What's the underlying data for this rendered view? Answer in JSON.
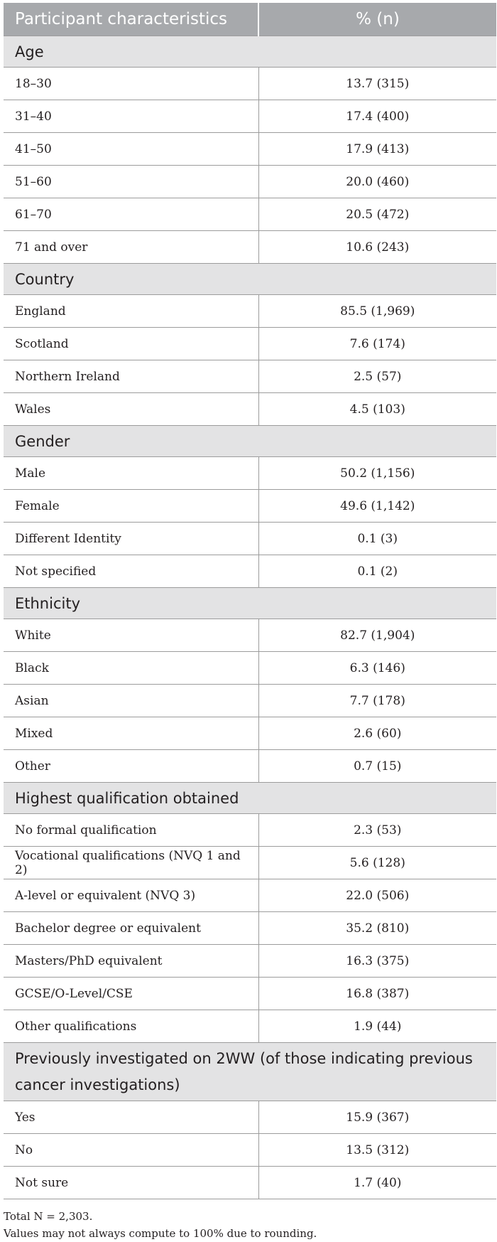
{
  "table": {
    "headers": [
      "Participant characteristics",
      "% (n)"
    ],
    "sections": [
      {
        "title": "Age",
        "rows": [
          [
            "18–30",
            "13.7 (315)"
          ],
          [
            "31–40",
            "17.4 (400)"
          ],
          [
            "41–50",
            "17.9 (413)"
          ],
          [
            "51–60",
            "20.0 (460)"
          ],
          [
            "61–70",
            "20.5 (472)"
          ],
          [
            "71 and over",
            "10.6 (243)"
          ]
        ]
      },
      {
        "title": "Country",
        "rows": [
          [
            "England",
            "85.5 (1,969)"
          ],
          [
            "Scotland",
            "7.6 (174)"
          ],
          [
            "Northern Ireland",
            "2.5 (57)"
          ],
          [
            "Wales",
            "4.5 (103)"
          ]
        ]
      },
      {
        "title": "Gender",
        "rows": [
          [
            "Male",
            "50.2 (1,156)"
          ],
          [
            "Female",
            "49.6 (1,142)"
          ],
          [
            "Different Identity",
            "0.1 (3)"
          ],
          [
            "Not specified",
            "0.1 (2)"
          ]
        ]
      },
      {
        "title": "Ethnicity",
        "rows": [
          [
            "White",
            "82.7 (1,904)"
          ],
          [
            "Black",
            "6.3 (146)"
          ],
          [
            "Asian",
            "7.7 (178)"
          ],
          [
            "Mixed",
            "2.6 (60)"
          ],
          [
            "Other",
            "0.7 (15)"
          ]
        ]
      },
      {
        "title": "Highest qualification obtained",
        "rows": [
          [
            "No formal qualification",
            "2.3 (53)"
          ],
          [
            "Vocational qualifications (NVQ 1 and 2)",
            "5.6 (128)"
          ],
          [
            "A-level or equivalent (NVQ 3)",
            "22.0 (506)"
          ],
          [
            "Bachelor degree or equivalent",
            "35.2 (810)"
          ],
          [
            "Masters/PhD equivalent",
            "16.3 (375)"
          ],
          [
            "GCSE/O-Level/CSE",
            "16.8 (387)"
          ],
          [
            "Other qualifications",
            "1.9 (44)"
          ]
        ]
      },
      {
        "title": "Previously investigated on 2WW (of those indicating previous cancer investigations)",
        "rows": [
          [
            "Yes",
            "15.9 (367)"
          ],
          [
            "No",
            "13.5 (312)"
          ],
          [
            "Not sure",
            "1.7 (40)"
          ]
        ]
      }
    ]
  },
  "footnotes": [
    "Total N = 2,303.",
    "Values may not always compute to 100% due to rounding."
  ]
}
